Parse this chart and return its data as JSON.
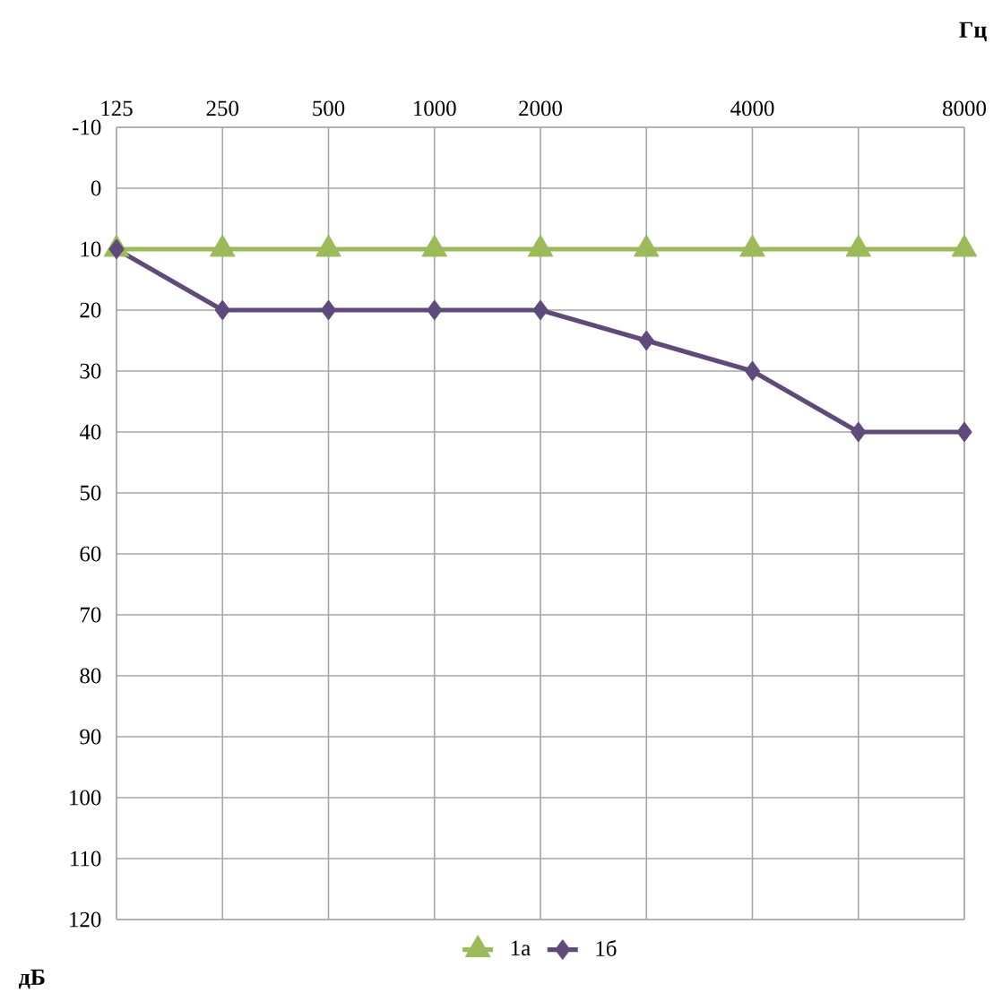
{
  "chart_data": {
    "type": "line",
    "xlabel": "Гц",
    "ylabel": "дБ",
    "categories": [
      "125",
      "250",
      "500",
      "1000",
      "2000",
      null,
      "4000",
      null,
      "8000"
    ],
    "series": [
      {
        "name": "1а",
        "color": "#9bbb59",
        "marker": "triangle",
        "values": [
          10,
          10,
          10,
          10,
          10,
          10,
          10,
          10,
          10
        ]
      },
      {
        "name": "1б",
        "color": "#604a7b",
        "marker": "diamond",
        "values": [
          10,
          20,
          20,
          20,
          20,
          25,
          30,
          40,
          40
        ]
      }
    ],
    "ylim": [
      120,
      -10
    ],
    "yticks": [
      -10,
      0,
      10,
      20,
      30,
      40,
      50,
      60,
      70,
      80,
      90,
      100,
      110,
      120
    ],
    "grid": true,
    "legend": "bottom"
  }
}
